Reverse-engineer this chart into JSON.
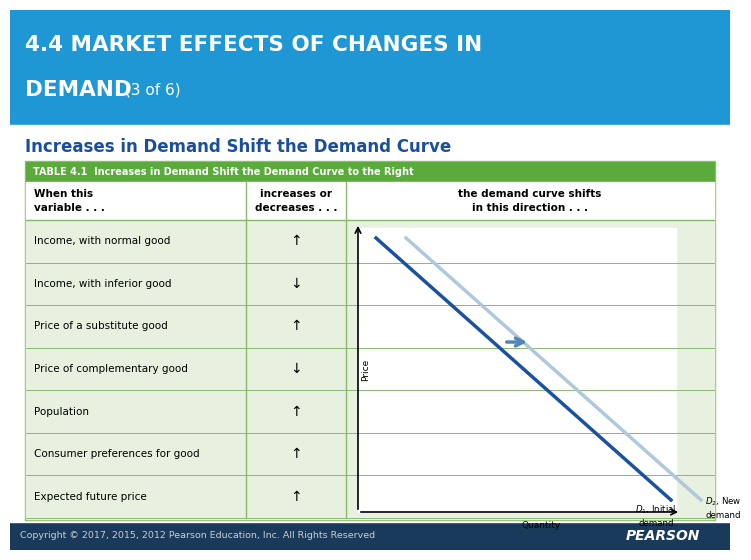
{
  "title_line1": "4.4 MARKET EFFECTS OF CHANGES IN",
  "title_line2_main": "DEMAND",
  "title_line2_suffix": " (3 of 6)",
  "subtitle": "Increases in Demand Shift the Demand Curve",
  "table_header": "TABLE 4.1  Increases in Demand Shift the Demand Curve to the Right",
  "col1_header": "When this\nvariable . . .",
  "col2_header": "increases or\ndecreases . . .",
  "col3_header": "the demand curve shifts\nin this direction . . .",
  "rows": [
    [
      "Income, with normal good",
      "↑"
    ],
    [
      "Income, with inferior good",
      "↓"
    ],
    [
      "Price of a substitute good",
      "↑"
    ],
    [
      "Price of complementary good",
      "↓"
    ],
    [
      "Population",
      "↑"
    ],
    [
      "Consumer preferences for good",
      "↑"
    ],
    [
      "Expected future price",
      "↑"
    ]
  ],
  "footer": "Copyright © 2017, 2015, 2012 Pearson Education, Inc. All Rights Reserved",
  "header_bg": "#1f97d4",
  "table_header_bg": "#5aaa3c",
  "table_row_bg": "#e8f0e0",
  "table_border_color": "#8ab870",
  "subtitle_color": "#1a4f9c",
  "footer_bg": "#1a3a5c",
  "footer_text_color": "#cccccc",
  "d1_color": "#1a52a0",
  "d2_color": "#b0c8dc",
  "arrow_color": "#4f88b8",
  "d1_label": "$D_1$, Initial\ndemand",
  "d2_label": "$D_2$, New\ndemand"
}
